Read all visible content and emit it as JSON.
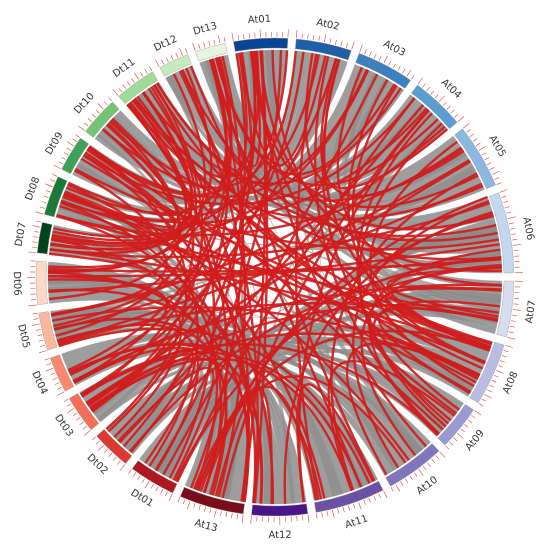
{
  "diagram": {
    "chromosomes": [
      {
        "label": "At01",
        "color": "#084594",
        "size": 60
      },
      {
        "label": "At02",
        "color": "#1f5fa8",
        "size": 62
      },
      {
        "label": "At03",
        "color": "#3b80c0",
        "size": 64
      },
      {
        "label": "At04",
        "color": "#5a9dd0",
        "size": 60
      },
      {
        "label": "At05",
        "color": "#8ab8df",
        "size": 72
      },
      {
        "label": "At06",
        "color": "#c3d7ee",
        "size": 90
      },
      {
        "label": "At07",
        "color": "#d6ddf0",
        "size": 62
      },
      {
        "label": "At08",
        "color": "#b9bde3",
        "size": 70
      },
      {
        "label": "At09",
        "color": "#9a9ad2",
        "size": 50
      },
      {
        "label": "At10",
        "color": "#7f75bd",
        "size": 66
      },
      {
        "label": "At11",
        "color": "#6a51a3",
        "size": 78
      },
      {
        "label": "At12",
        "color": "#4a1486",
        "size": 62
      },
      {
        "label": "At13",
        "color": "#7a0d1b",
        "size": 72
      },
      {
        "label": "Dt01",
        "color": "#b0171f",
        "size": 52
      },
      {
        "label": "Dt02",
        "color": "#dd3930",
        "size": 44
      },
      {
        "label": "Dt03",
        "color": "#f46d55",
        "size": 42
      },
      {
        "label": "Dt04",
        "color": "#f8896c",
        "size": 40
      },
      {
        "label": "Dt05",
        "color": "#fbb79c",
        "size": 42
      },
      {
        "label": "Dt06",
        "color": "#fdd9c8",
        "size": 48
      },
      {
        "label": "Dt07",
        "color": "#00441b",
        "size": 34
      },
      {
        "label": "Dt08",
        "color": "#1a7a3a",
        "size": 44
      },
      {
        "label": "Dt09",
        "color": "#3fa05a",
        "size": 40
      },
      {
        "label": "Dt10",
        "color": "#73c476",
        "size": 44
      },
      {
        "label": "Dt11",
        "color": "#a1d99b",
        "size": 46
      },
      {
        "label": "Dt12",
        "color": "#c7e9c0",
        "size": 34
      },
      {
        "label": "Dt13",
        "color": "#e5f5e0",
        "size": 34
      }
    ],
    "colors": {
      "background_link": "#8c8c8c",
      "highlight_link": "#d01c1c",
      "tick": "#e04040"
    }
  }
}
